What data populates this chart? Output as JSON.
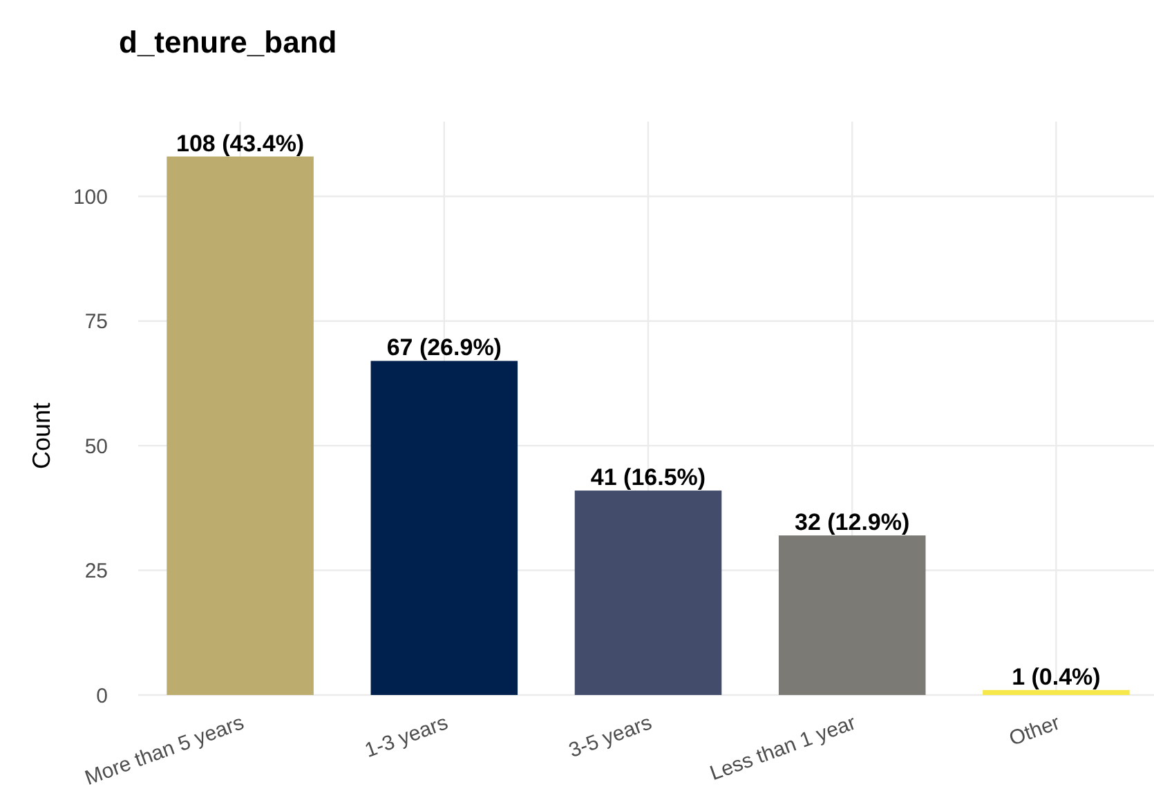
{
  "chart_data": {
    "type": "bar",
    "title": "d_tenure_band",
    "ylabel": "Count",
    "categories": [
      "More than 5 years",
      "1-3 years",
      "3-5 years",
      "Less than 1 year",
      "Other"
    ],
    "values": [
      108,
      67,
      41,
      32,
      1
    ],
    "colors": [
      "#bcad6e",
      "#00214d",
      "#434d6b",
      "#7b7a74",
      "#f6e84a"
    ],
    "value_labels": [
      "108 (43.4%)",
      "67 (26.9%)",
      "41 (16.5%)",
      "32 (12.9%)",
      "1 (0.4%)"
    ],
    "ylim": [
      0,
      115
    ],
    "yticks": [
      0,
      25,
      50,
      75,
      100
    ],
    "grid": true
  }
}
